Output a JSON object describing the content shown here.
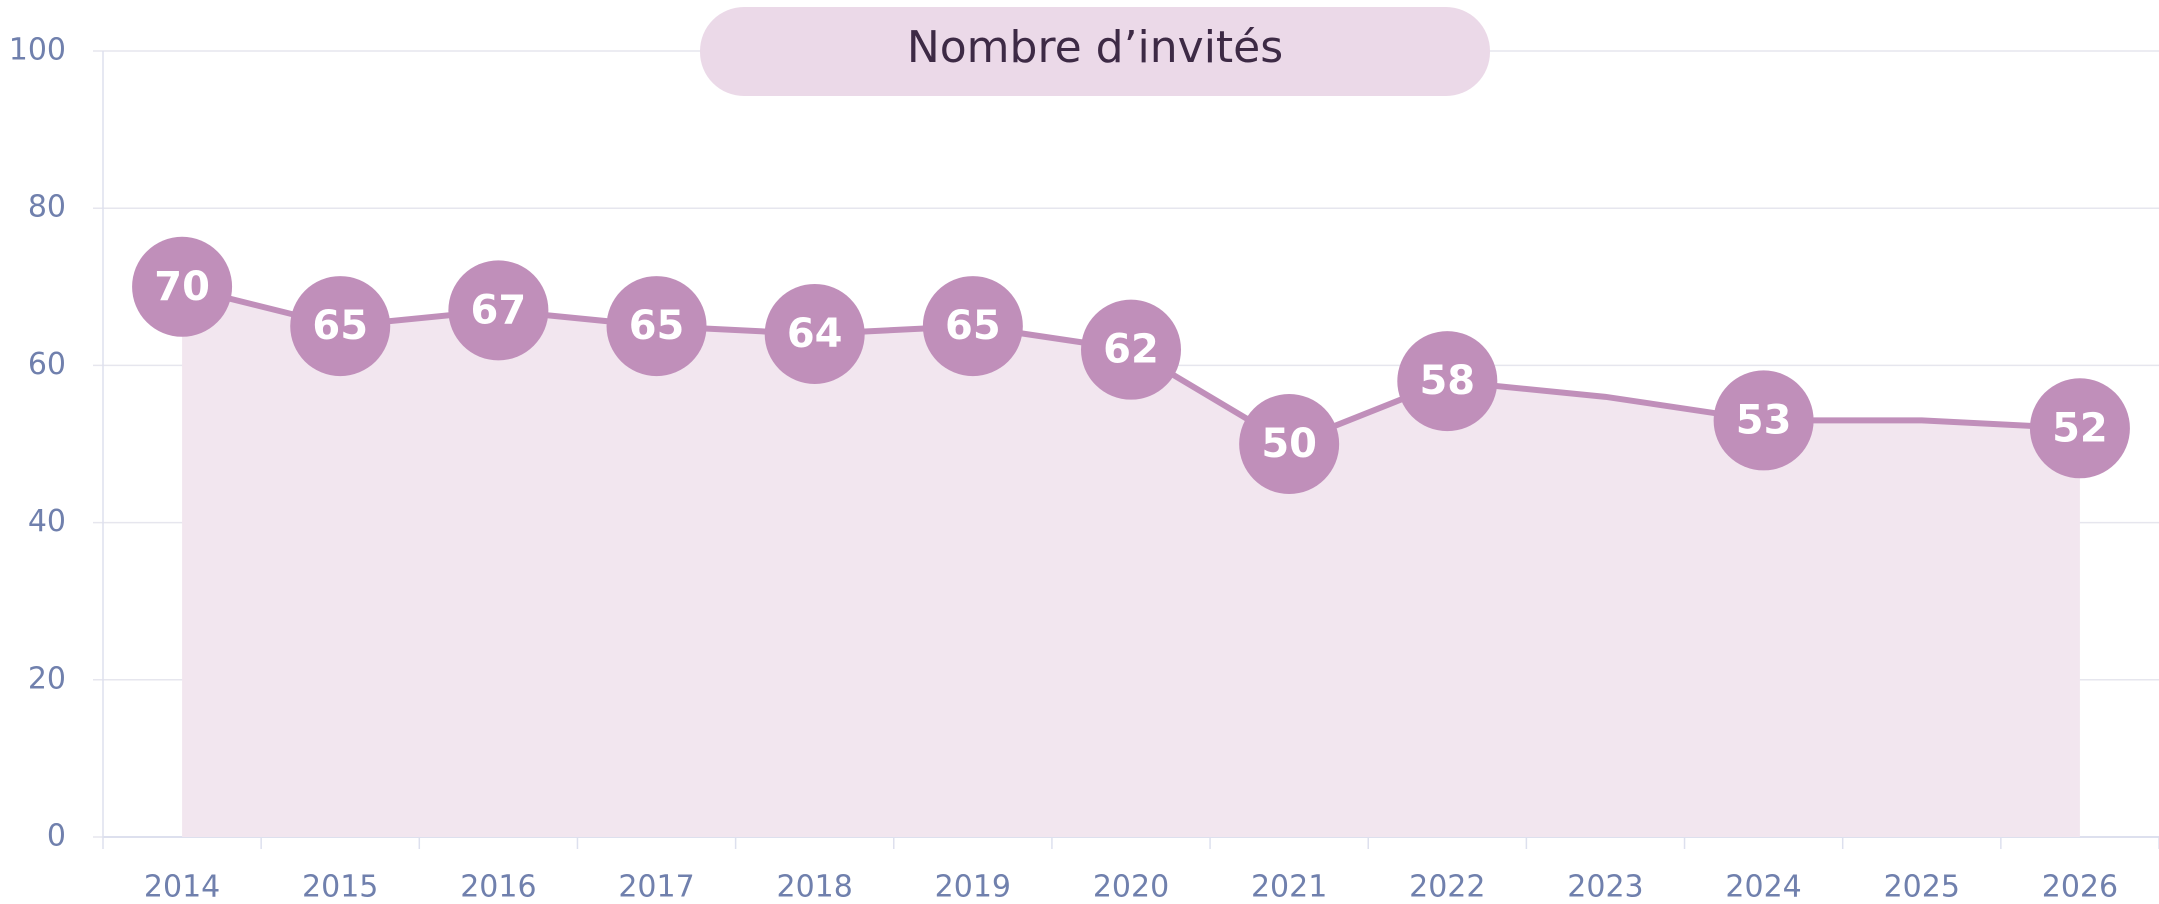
{
  "chart_data": {
    "type": "line",
    "title": "Nombre d’invités",
    "categories": [
      "2014",
      "2015",
      "2016",
      "2017",
      "2018",
      "2019",
      "2020",
      "2021",
      "2022",
      "2023",
      "2024",
      "2025",
      "2026"
    ],
    "values": [
      70,
      65,
      67,
      65,
      64,
      65,
      62,
      50,
      58,
      56,
      53,
      53,
      52
    ],
    "value_labels": [
      "70",
      "65",
      "67",
      "65",
      "64",
      "65",
      "62",
      "50",
      "58",
      null,
      "53",
      null,
      "52"
    ],
    "color": "#c08fba",
    "ylim": [
      0,
      100
    ],
    "yticks": [
      0,
      20,
      40,
      60,
      80,
      100
    ],
    "grid": true
  }
}
